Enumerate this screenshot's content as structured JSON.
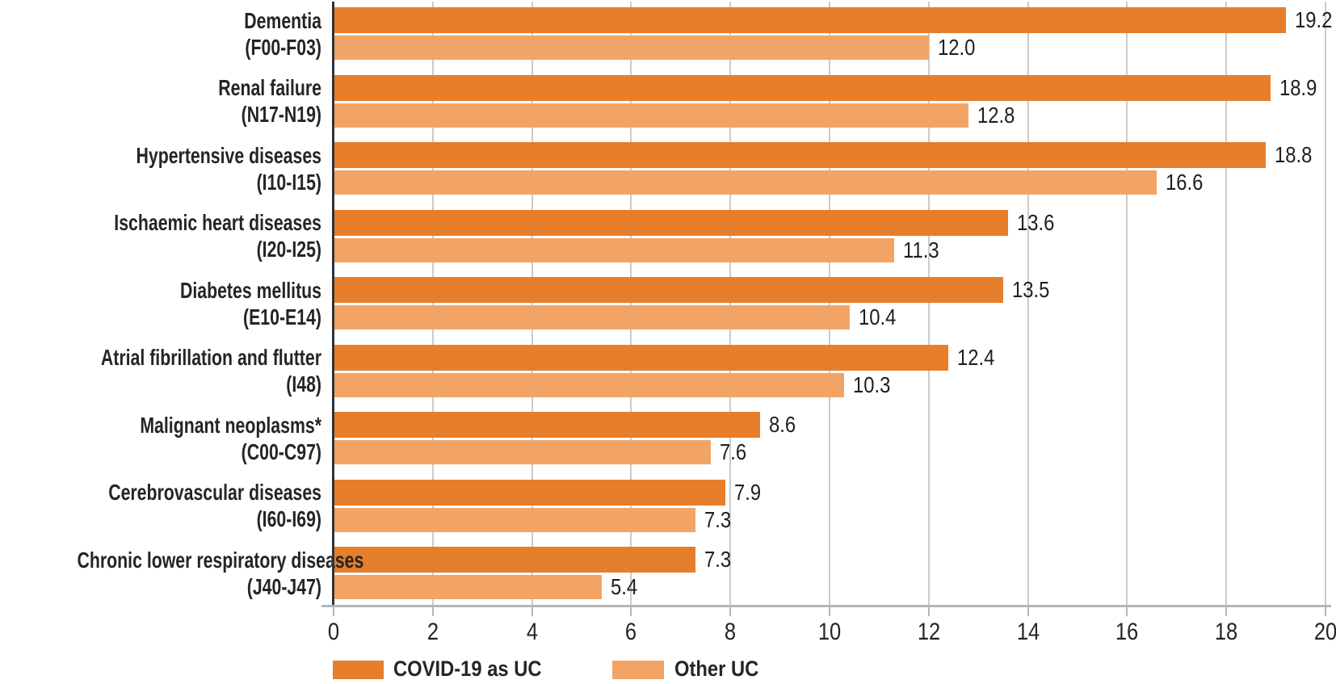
{
  "chart_data": {
    "type": "bar",
    "orientation": "horizontal",
    "title": "",
    "xlabel": "",
    "ylabel": "",
    "xlim": [
      0,
      20
    ],
    "xticks": [
      0,
      2,
      4,
      6,
      8,
      10,
      12,
      14,
      16,
      18,
      20
    ],
    "grid": true,
    "legend_position": "bottom",
    "categories": [
      {
        "name": "Dementia",
        "code": "(F00-F03)"
      },
      {
        "name": "Renal failure",
        "code": "(N17-N19)"
      },
      {
        "name": "Hypertensive diseases",
        "code": "(I10-I15)"
      },
      {
        "name": "Ischaemic heart diseases",
        "code": "(I20-I25)"
      },
      {
        "name": "Diabetes mellitus",
        "code": "(E10-E14)"
      },
      {
        "name": "Atrial fibrillation and flutter",
        "code": "(I48)"
      },
      {
        "name": "Malignant neoplasms*",
        "code": "(C00-C97)"
      },
      {
        "name": "Cerebrovascular diseases",
        "code": "(I60-I69)"
      },
      {
        "name": "Chronic lower respiratory diseases",
        "code": "(J40-J47)"
      }
    ],
    "series": [
      {
        "name": "COVID-19 as UC",
        "color": "#e67e2b",
        "values": [
          19.2,
          18.9,
          18.8,
          13.6,
          13.5,
          12.4,
          8.6,
          7.9,
          7.3
        ],
        "labels": [
          "19.2",
          "18.9",
          "18.8",
          "13.6",
          "13.5",
          "12.4",
          "8.6",
          "7.9",
          "7.3"
        ]
      },
      {
        "name": "Other UC",
        "color": "#f2a466",
        "values": [
          12.0,
          12.8,
          16.6,
          11.3,
          10.4,
          10.3,
          7.6,
          7.3,
          5.4
        ],
        "labels": [
          "12.0",
          "12.8",
          "16.6",
          "11.3",
          "10.4",
          "10.3",
          "7.6",
          "7.3",
          "5.4"
        ]
      }
    ]
  },
  "colors": {
    "grid": "#c9cbcd",
    "axis": "#b4b6b8",
    "y_axis": "#2d3338",
    "text": "#232528"
  }
}
